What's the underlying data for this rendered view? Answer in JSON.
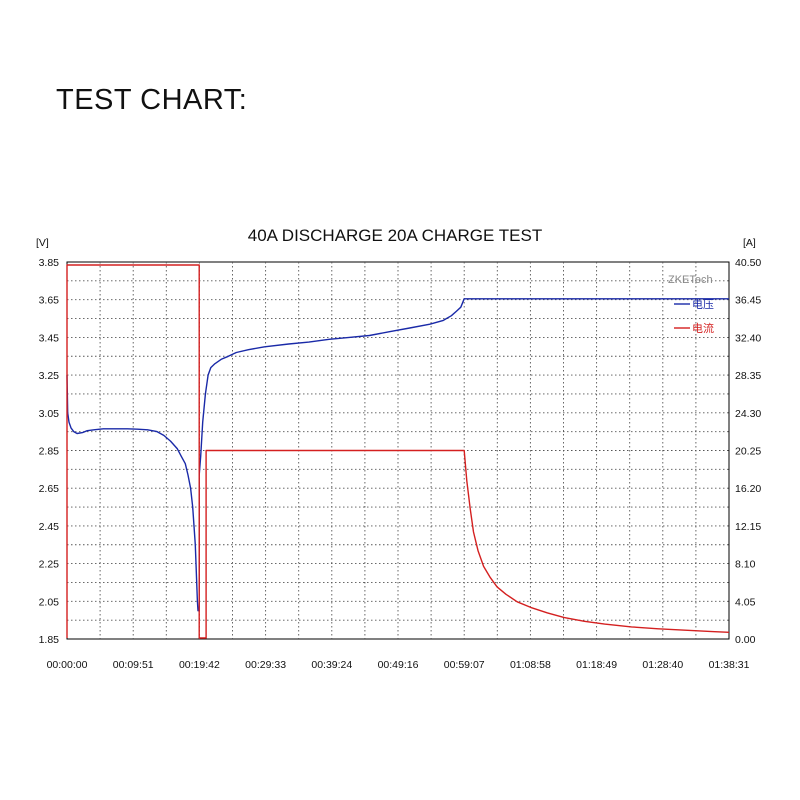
{
  "page": {
    "heading": "TEST CHART:"
  },
  "chart_data": {
    "type": "line",
    "title": "40A DISCHARGE 20A CHARGE TEST",
    "y_left_unit": "[V]",
    "y_right_unit": "[A]",
    "watermark": "ZKETech",
    "x_tick_labels": [
      "00:00:00",
      "00:09:51",
      "00:19:42",
      "00:29:33",
      "00:39:24",
      "00:49:16",
      "00:59:07",
      "01:08:58",
      "01:18:49",
      "01:28:40",
      "01:38:31"
    ],
    "xlim_seconds": [
      0,
      5911
    ],
    "y_left_ticks": [
      "3.85",
      "3.65",
      "3.45",
      "3.25",
      "3.05",
      "2.85",
      "2.65",
      "2.45",
      "2.25",
      "2.05",
      "1.85"
    ],
    "y_left_range": [
      1.85,
      3.85
    ],
    "y_right_ticks": [
      "40.50",
      "36.45",
      "32.40",
      "28.35",
      "24.30",
      "20.25",
      "16.20",
      "12.15",
      "8.10",
      "4.05",
      "0.00"
    ],
    "y_right_range": [
      0,
      40.5
    ],
    "grid": true,
    "legend_position": "top-right",
    "series": [
      {
        "name": "电压",
        "axis": "left",
        "color": "#1a2aa8",
        "x_time": [
          "00:00:00",
          "00:00:06",
          "00:00:18",
          "00:00:36",
          "00:01:00",
          "00:01:30",
          "00:02:18",
          "00:03:00",
          "00:04:00",
          "00:05:24",
          "00:07:24",
          "00:09:00",
          "00:10:30",
          "00:12:00",
          "00:13:24",
          "00:14:24",
          "00:15:24",
          "00:16:24",
          "00:17:00",
          "00:17:36",
          "00:18:00",
          "00:18:24",
          "00:18:42",
          "00:18:54",
          "00:19:06",
          "00:19:12",
          "00:19:18",
          "00:19:24",
          "00:19:30",
          "00:19:36",
          "00:19:40",
          "00:19:40",
          "00:19:54",
          "00:20:12",
          "00:20:36",
          "00:21:00",
          "00:21:24",
          "00:22:00",
          "00:23:00",
          "00:24:00",
          "00:25:12",
          "00:27:00",
          "00:29:24",
          "00:33:00",
          "00:36:00",
          "00:39:00",
          "00:42:00",
          "00:45:00",
          "00:48:00",
          "00:51:00",
          "00:54:00",
          "00:56:00",
          "00:57:12",
          "00:58:00",
          "00:58:36",
          "00:59:07",
          "01:38:31"
        ],
        "values": [
          3.25,
          3.05,
          3.0,
          2.97,
          2.95,
          2.94,
          2.945,
          2.955,
          2.96,
          2.965,
          2.965,
          2.965,
          2.963,
          2.96,
          2.95,
          2.93,
          2.9,
          2.86,
          2.82,
          2.78,
          2.72,
          2.65,
          2.55,
          2.45,
          2.35,
          2.25,
          2.15,
          2.05,
          2.0,
          2.0,
          2.0,
          2.72,
          2.82,
          3.0,
          3.15,
          3.25,
          3.29,
          3.31,
          3.335,
          3.35,
          3.37,
          3.385,
          3.4,
          3.415,
          3.425,
          3.44,
          3.45,
          3.46,
          3.48,
          3.5,
          3.52,
          3.54,
          3.565,
          3.59,
          3.61,
          3.655,
          3.655
        ]
      },
      {
        "name": "电流",
        "axis": "right",
        "color": "#d42020",
        "x_time": [
          "00:00:00",
          "00:00:00",
          "00:19:40",
          "00:19:40",
          "00:20:42",
          "00:20:42",
          "00:59:07",
          "00:59:30",
          "01:00:00",
          "01:00:30",
          "01:01:10",
          "01:02:00",
          "01:03:00",
          "01:04:00",
          "01:05:20",
          "01:07:00",
          "01:09:00",
          "01:11:30",
          "01:14:00",
          "01:17:00",
          "01:20:00",
          "01:24:00",
          "01:28:00",
          "01:32:00",
          "01:36:00",
          "01:38:31"
        ],
        "values": [
          0,
          40.5,
          40.5,
          0,
          0,
          20.25,
          20.25,
          17.0,
          14.0,
          11.5,
          9.5,
          7.8,
          6.6,
          5.6,
          4.8,
          4.0,
          3.4,
          2.8,
          2.3,
          1.9,
          1.6,
          1.3,
          1.1,
          0.95,
          0.8,
          0.72
        ]
      }
    ]
  }
}
